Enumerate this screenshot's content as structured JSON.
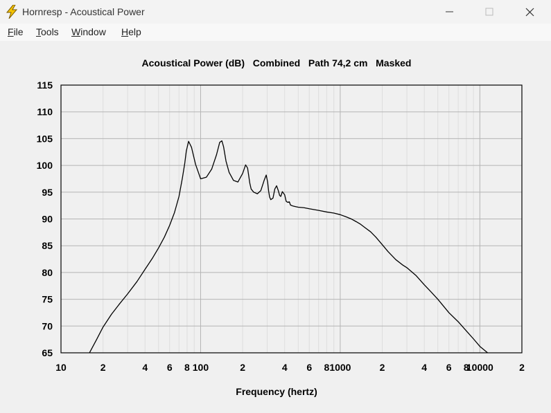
{
  "window": {
    "title": "Hornresp - Acoustical Power",
    "controls": {
      "minimize": "minimize-icon",
      "maximize": "maximize-icon",
      "close": "close-icon"
    },
    "app_icon": "lightning-bolt-icon"
  },
  "menubar": [
    {
      "key": "F",
      "rest": "ile"
    },
    {
      "key": "T",
      "rest": "ools"
    },
    {
      "key": "W",
      "rest": "indow"
    },
    {
      "key": "H",
      "rest": "elp"
    }
  ],
  "chart_data": {
    "type": "line",
    "title": "Acoustical Power (dB)   Combined   Path 74,2 cm   Masked",
    "xlabel": "Frequency (hertz)",
    "ylabel": "",
    "x_scale": "log",
    "xlim": [
      10,
      20000
    ],
    "ylim": [
      65,
      115
    ],
    "y_ticks": [
      65,
      70,
      75,
      80,
      85,
      90,
      95,
      100,
      105,
      110,
      115
    ],
    "x_tick_labels": [
      {
        "x": 10,
        "label": "10"
      },
      {
        "x": 20,
        "label": "2"
      },
      {
        "x": 40,
        "label": "4"
      },
      {
        "x": 60,
        "label": "6"
      },
      {
        "x": 80,
        "label": "8"
      },
      {
        "x": 100,
        "label": "100"
      },
      {
        "x": 200,
        "label": "2"
      },
      {
        "x": 400,
        "label": "4"
      },
      {
        "x": 600,
        "label": "6"
      },
      {
        "x": 800,
        "label": "8"
      },
      {
        "x": 1000,
        "label": "1000"
      },
      {
        "x": 2000,
        "label": "2"
      },
      {
        "x": 4000,
        "label": "4"
      },
      {
        "x": 6000,
        "label": "6"
      },
      {
        "x": 8000,
        "label": "8"
      },
      {
        "x": 10000,
        "label": "10000"
      },
      {
        "x": 20000,
        "label": "2"
      }
    ],
    "grid": true,
    "series": [
      {
        "x": [
          16,
          18,
          20,
          23,
          26,
          30,
          35,
          40,
          45,
          50,
          55,
          60,
          65,
          70,
          74,
          77,
          79,
          82,
          86,
          92,
          100,
          110,
          120,
          130,
          137,
          142,
          146,
          152,
          160,
          172,
          185,
          200,
          210,
          217,
          221,
          225,
          230,
          240,
          255,
          270,
          285,
          295,
          302,
          307,
          312,
          318,
          330,
          340,
          350,
          360,
          368,
          375,
          385,
          400,
          410,
          420,
          432,
          440,
          460,
          480,
          500,
          550,
          600,
          700,
          800,
          900,
          1000,
          1100,
          1200,
          1300,
          1400,
          1500,
          1650,
          1800,
          2000,
          2200,
          2500,
          2800,
          3000,
          3500,
          4000,
          4500,
          5000,
          5500,
          6000,
          7000,
          8000,
          9000,
          10000,
          11000,
          12000,
          13000
        ],
        "y": [
          65,
          67.5,
          69.8,
          72.2,
          74,
          76,
          78.3,
          80.6,
          82.6,
          84.6,
          86.6,
          88.8,
          91.2,
          94.2,
          97.6,
          100.4,
          102.7,
          104.5,
          103.4,
          100.2,
          97.5,
          97.8,
          99.3,
          102,
          104.3,
          104.6,
          103.5,
          100.8,
          98.7,
          97.2,
          96.9,
          98.5,
          100.1,
          99.5,
          98.1,
          96.7,
          95.6,
          95,
          94.7,
          95.3,
          97.2,
          98.2,
          96.9,
          95.2,
          94.1,
          93.6,
          93.9,
          95.6,
          96.2,
          95.3,
          94.4,
          94.2,
          95.1,
          94.5,
          93.3,
          93.1,
          93.2,
          92.6,
          92.4,
          92.3,
          92.2,
          92.1,
          91.9,
          91.6,
          91.3,
          91.1,
          90.8,
          90.4,
          90,
          89.5,
          89,
          88.4,
          87.6,
          86.6,
          85.2,
          83.9,
          82.4,
          81.4,
          80.9,
          79.4,
          77.7,
          76.3,
          75,
          73.7,
          72.5,
          70.8,
          69.1,
          67.6,
          66.2,
          65.3,
          64.5,
          63.8
        ]
      }
    ]
  }
}
